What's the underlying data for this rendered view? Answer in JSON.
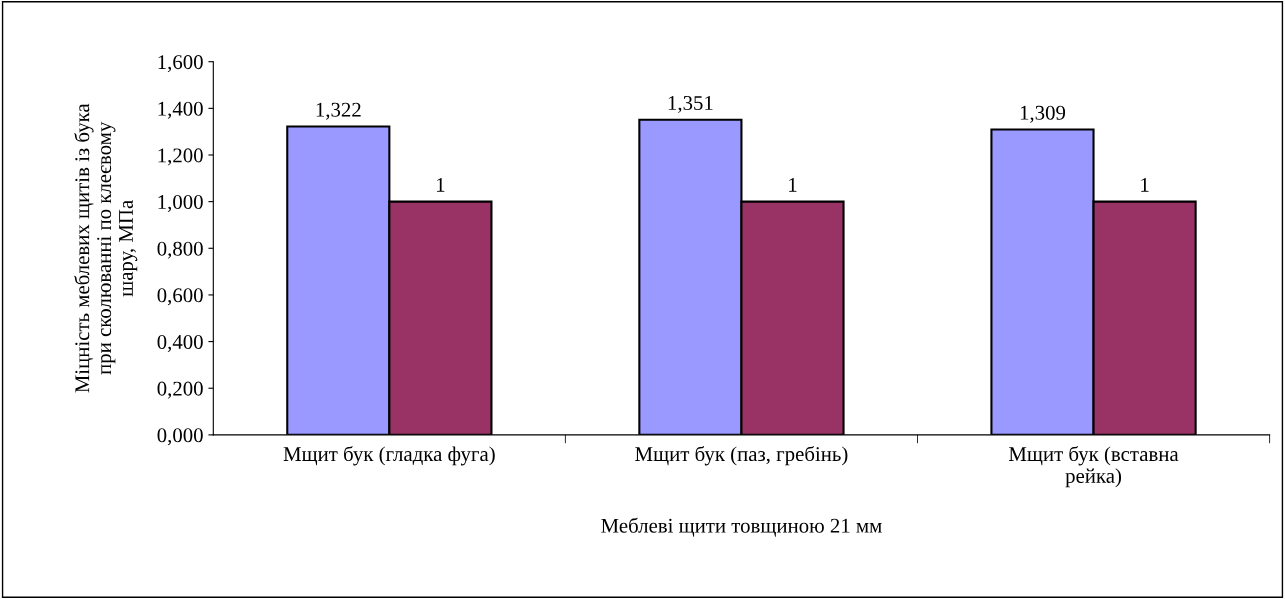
{
  "chart_data": {
    "type": "bar",
    "xlabel": "Меблеві щити товщиною 21 мм",
    "ylabel": "Міцність меблевих щитів із бука\nпри сколюванні по клеєвому\nшару, МПа",
    "categories": [
      "Мщит бук (гладка фуга)",
      "Мщит бук (паз, гребінь)",
      "Мщит бук (вставна\nрейка)"
    ],
    "series": [
      {
        "color": "#9999ff",
        "values": [
          1.322,
          1.351,
          1.309
        ],
        "value_labels": [
          "1,322",
          "1,351",
          "1,309"
        ]
      },
      {
        "color": "#993366",
        "values": [
          1,
          1,
          1
        ],
        "value_labels": [
          "1",
          "1",
          "1"
        ]
      }
    ],
    "ylim": [
      0,
      1.6
    ],
    "yticks": [
      {
        "value": 0,
        "label": "0,000"
      },
      {
        "value": 0.2,
        "label": "0,200"
      },
      {
        "value": 0.4,
        "label": "0,400"
      },
      {
        "value": 0.6,
        "label": "0,600"
      },
      {
        "value": 0.8,
        "label": "0,800"
      },
      {
        "value": 1.0,
        "label": "1,000"
      },
      {
        "value": 1.2,
        "label": "1,200"
      },
      {
        "value": 1.4,
        "label": "1,400"
      },
      {
        "value": 1.6,
        "label": "1,600"
      }
    ],
    "grid": false,
    "legend": false
  }
}
